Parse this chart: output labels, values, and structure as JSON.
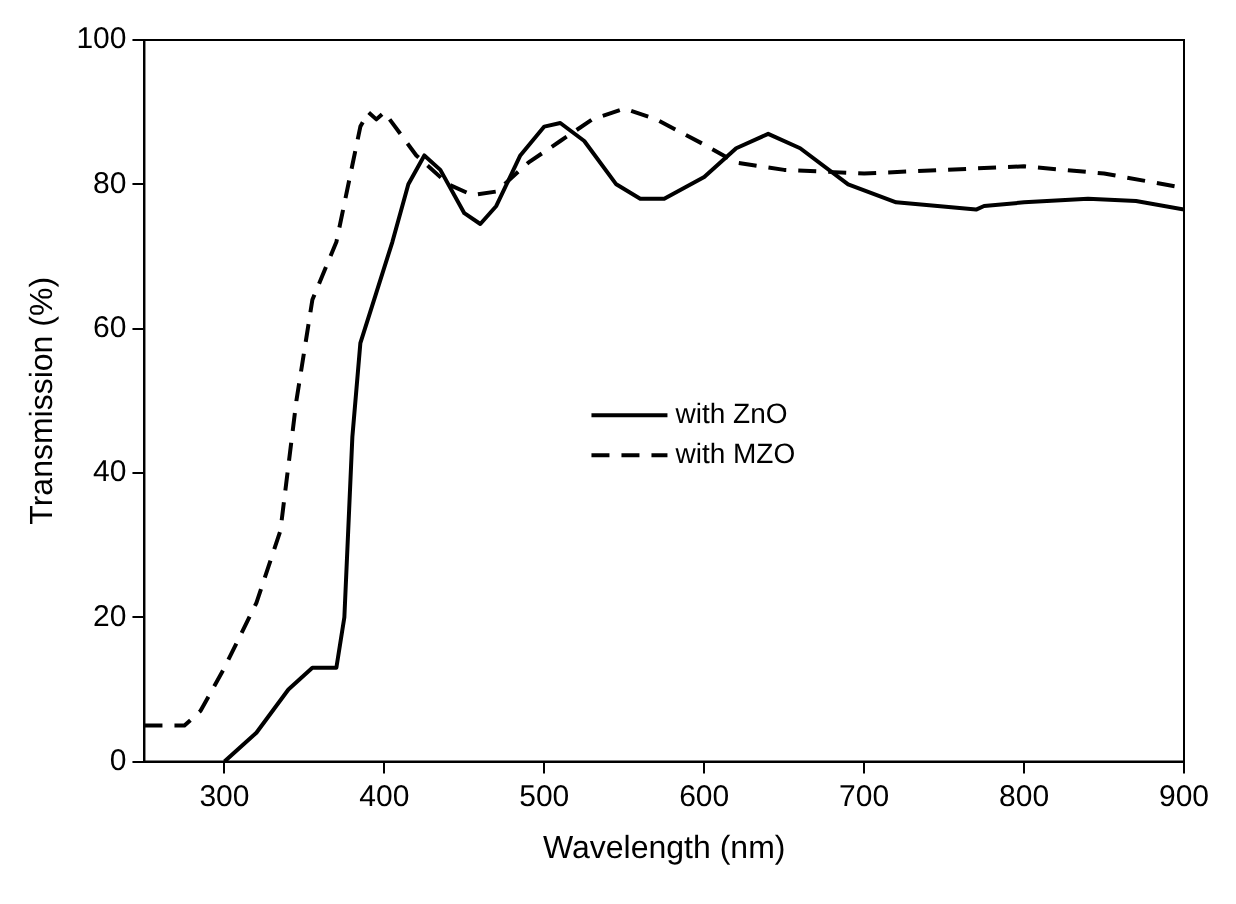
{
  "chart_data": {
    "type": "line",
    "xlabel": "Wavelength (nm)",
    "ylabel": "Transmission (%)",
    "xlim": [
      250,
      900
    ],
    "xticks": [
      300,
      400,
      500,
      600,
      700,
      800,
      900
    ],
    "ylim": [
      0,
      100
    ],
    "yticks": [
      0,
      20,
      40,
      60,
      80,
      100
    ],
    "grid": false,
    "legend": "center",
    "marker": "none",
    "series": [
      {
        "name": "with ZnO",
        "color": "#000000",
        "line_style": "solid",
        "x": [
          300,
          320,
          340,
          355,
          370,
          375,
          380,
          385,
          395,
          405,
          415,
          425,
          435,
          450,
          460,
          470,
          485,
          500,
          510,
          525,
          545,
          560,
          575,
          600,
          620,
          640,
          660,
          690,
          720,
          770,
          775,
          800,
          840,
          870,
          900
        ],
        "values": [
          0,
          4,
          10,
          13,
          13,
          20,
          45,
          58,
          65,
          72,
          80,
          84,
          82,
          76,
          74.5,
          77,
          84,
          88,
          88.5,
          86,
          80,
          78,
          78,
          81,
          85,
          87,
          85,
          80,
          77.5,
          76.5,
          77,
          77.5,
          78,
          77.7,
          76.5
        ]
      },
      {
        "name": "with MZO",
        "color": "#000000",
        "line_style": "dashed",
        "x": [
          250,
          275,
          285,
          300,
          320,
          335,
          345,
          355,
          370,
          385,
          390,
          395,
          400,
          410,
          420,
          440,
          455,
          470,
          490,
          510,
          530,
          550,
          570,
          600,
          620,
          650,
          700,
          750,
          800,
          850,
          900
        ],
        "values": [
          5,
          5,
          7,
          13,
          22,
          32,
          50,
          64,
          72,
          88,
          90,
          89,
          90,
          87,
          84,
          80,
          78.5,
          79,
          83,
          86,
          89,
          90.5,
          89,
          85.5,
          83,
          82,
          81.5,
          82,
          82.5,
          81.5,
          79.5
        ]
      }
    ]
  }
}
